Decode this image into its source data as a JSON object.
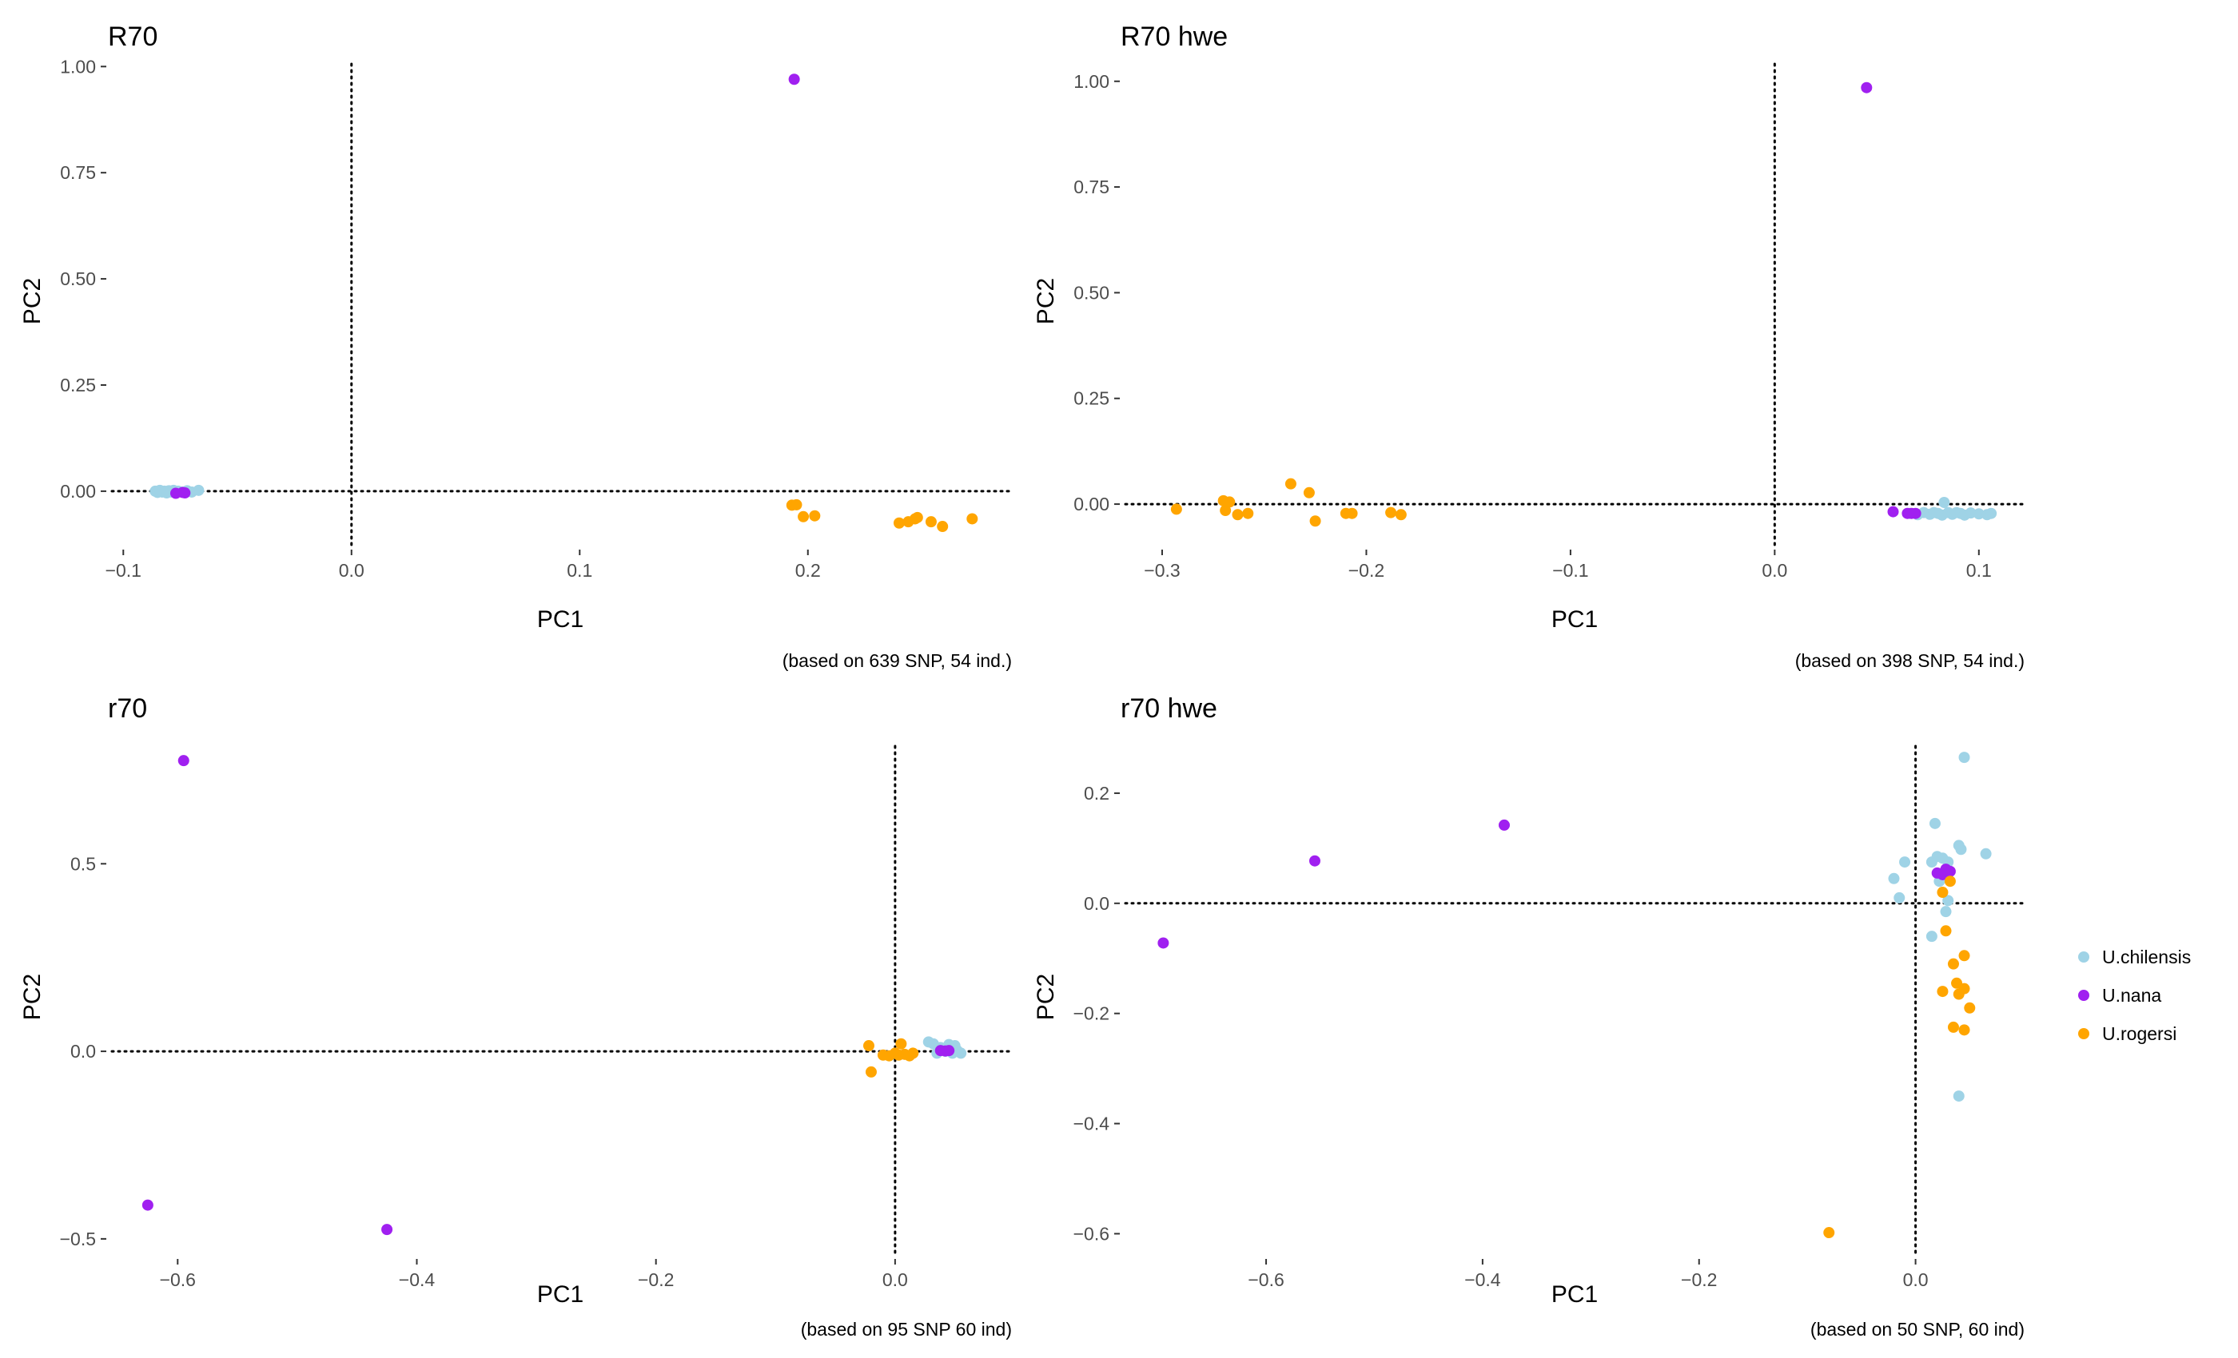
{
  "colors": {
    "U.chilensis": "#9fd3e6",
    "U.nana": "#a020f0",
    "U.rogersi": "#ffa500"
  },
  "legend": {
    "items": [
      "U.chilensis",
      "U.nana",
      "U.rogersi"
    ],
    "position": "right"
  },
  "chart_data": [
    {
      "type": "scatter",
      "title": "R70",
      "xlabel": "PC1",
      "ylabel": "PC2",
      "xlim": [
        -0.105,
        0.288
      ],
      "ylim": [
        -0.13,
        1.025
      ],
      "xticks": [
        -0.1,
        0.0,
        0.1,
        0.2
      ],
      "xtick_labels": [
        "−0.1",
        "0.0",
        "0.1",
        "0.2"
      ],
      "yticks": [
        0.0,
        0.25,
        0.5,
        0.75,
        1.0
      ],
      "ytick_labels": [
        "0.00",
        "0.25",
        "0.50",
        "0.75",
        "1.00"
      ],
      "refline_x": 0,
      "refline_y": 0,
      "caption": "(based on 639 SNP, 54 ind.)",
      "grid": false,
      "series": [
        {
          "name": "U.chilensis",
          "points": [
            [
              -0.086,
              0.0
            ],
            [
              -0.085,
              -0.003
            ],
            [
              -0.084,
              0.002
            ],
            [
              -0.083,
              -0.002
            ],
            [
              -0.082,
              0.0
            ],
            [
              -0.081,
              -0.004
            ],
            [
              -0.08,
              0.001
            ],
            [
              -0.079,
              -0.002
            ],
            [
              -0.078,
              0.002
            ],
            [
              -0.077,
              -0.003
            ],
            [
              -0.076,
              0.0
            ],
            [
              -0.074,
              -0.002
            ],
            [
              -0.072,
              0.001
            ],
            [
              -0.07,
              -0.002
            ],
            [
              -0.067,
              0.002
            ]
          ]
        },
        {
          "name": "U.nana",
          "points": [
            [
              0.194,
              0.97
            ],
            [
              -0.077,
              -0.005
            ],
            [
              -0.074,
              -0.003
            ],
            [
              -0.073,
              -0.004
            ]
          ]
        },
        {
          "name": "U.rogersi",
          "points": [
            [
              0.193,
              -0.033
            ],
            [
              0.195,
              -0.032
            ],
            [
              0.198,
              -0.06
            ],
            [
              0.203,
              -0.058
            ],
            [
              0.24,
              -0.075
            ],
            [
              0.244,
              -0.072
            ],
            [
              0.247,
              -0.065
            ],
            [
              0.248,
              -0.062
            ],
            [
              0.254,
              -0.072
            ],
            [
              0.259,
              -0.083
            ],
            [
              0.272,
              -0.065
            ]
          ]
        }
      ]
    },
    {
      "type": "scatter",
      "title": "R70 hwe",
      "xlabel": "PC1",
      "ylabel": "PC2",
      "xlim": [
        -0.318,
        0.122
      ],
      "ylim": [
        -0.1,
        1.06
      ],
      "xticks": [
        -0.3,
        -0.2,
        -0.1,
        0.0,
        0.1
      ],
      "xtick_labels": [
        "−0.3",
        "−0.2",
        "−0.1",
        "0.0",
        "0.1"
      ],
      "yticks": [
        0.0,
        0.25,
        0.5,
        0.75,
        1.0
      ],
      "ytick_labels": [
        "0.00",
        "0.25",
        "0.50",
        "0.75",
        "1.00"
      ],
      "refline_x": 0,
      "refline_y": 0,
      "caption": "(based on 398 SNP, 54 ind.)",
      "grid": false,
      "series": [
        {
          "name": "U.chilensis",
          "points": [
            [
              0.066,
              -0.022
            ],
            [
              0.07,
              -0.025
            ],
            [
              0.073,
              -0.02
            ],
            [
              0.076,
              -0.024
            ],
            [
              0.078,
              -0.02
            ],
            [
              0.08,
              -0.022
            ],
            [
              0.082,
              -0.026
            ],
            [
              0.083,
              0.004
            ],
            [
              0.085,
              -0.02
            ],
            [
              0.087,
              -0.024
            ],
            [
              0.089,
              -0.02
            ],
            [
              0.091,
              -0.022
            ],
            [
              0.093,
              -0.026
            ],
            [
              0.096,
              -0.021
            ],
            [
              0.1,
              -0.023
            ],
            [
              0.104,
              -0.025
            ],
            [
              0.106,
              -0.022
            ]
          ]
        },
        {
          "name": "U.nana",
          "points": [
            [
              0.045,
              0.985
            ],
            [
              0.058,
              -0.018
            ],
            [
              0.065,
              -0.022
            ],
            [
              0.067,
              -0.022
            ],
            [
              0.069,
              -0.022
            ]
          ]
        },
        {
          "name": "U.rogersi",
          "points": [
            [
              -0.293,
              -0.012
            ],
            [
              -0.27,
              0.008
            ],
            [
              -0.269,
              -0.015
            ],
            [
              -0.267,
              0.005
            ],
            [
              -0.263,
              -0.025
            ],
            [
              -0.258,
              -0.022
            ],
            [
              -0.237,
              0.048
            ],
            [
              -0.228,
              0.027
            ],
            [
              -0.225,
              -0.04
            ],
            [
              -0.21,
              -0.022
            ],
            [
              -0.207,
              -0.022
            ],
            [
              -0.188,
              -0.02
            ],
            [
              -0.183,
              -0.025
            ]
          ]
        }
      ]
    },
    {
      "type": "scatter",
      "title": "r70",
      "xlabel": "PC1",
      "ylabel": "PC2",
      "xlim": [
        -0.655,
        0.095
      ],
      "ylim": [
        -0.545,
        0.835
      ],
      "xticks": [
        -0.6,
        -0.4,
        -0.2,
        0.0
      ],
      "xtick_labels": [
        "−0.6",
        "−0.4",
        "−0.2",
        "0.0"
      ],
      "yticks": [
        -0.5,
        0.0,
        0.5
      ],
      "ytick_labels": [
        "−0.5",
        "0.0",
        "0.5"
      ],
      "refline_x": 0,
      "refline_y": 0,
      "caption": "(based on 95 SNP 60 ind)",
      "grid": false,
      "series": [
        {
          "name": "U.chilensis",
          "points": [
            [
              0.028,
              0.025
            ],
            [
              0.032,
              0.02
            ],
            [
              0.035,
              -0.005
            ],
            [
              0.038,
              0.01
            ],
            [
              0.042,
              0.0
            ],
            [
              0.045,
              0.018
            ],
            [
              0.048,
              -0.005
            ],
            [
              0.05,
              0.015
            ],
            [
              0.052,
              0.002
            ],
            [
              0.055,
              -0.005
            ]
          ]
        },
        {
          "name": "U.nana",
          "points": [
            [
              -0.595,
              0.775
            ],
            [
              -0.625,
              -0.41
            ],
            [
              -0.425,
              -0.475
            ],
            [
              0.038,
              0.002
            ],
            [
              0.042,
              0.001
            ],
            [
              0.045,
              0.002
            ]
          ]
        },
        {
          "name": "U.rogersi",
          "points": [
            [
              -0.022,
              0.015
            ],
            [
              -0.02,
              -0.055
            ],
            [
              -0.01,
              -0.01
            ],
            [
              -0.005,
              -0.012
            ],
            [
              0.0,
              -0.005
            ],
            [
              0.003,
              -0.01
            ],
            [
              0.005,
              0.02
            ],
            [
              0.008,
              -0.008
            ],
            [
              0.012,
              -0.012
            ],
            [
              0.015,
              -0.005
            ]
          ]
        }
      ]
    },
    {
      "type": "scatter",
      "title": "r70 hwe",
      "xlabel": "PC1",
      "ylabel": "PC2",
      "xlim": [
        -0.73,
        0.1
      ],
      "ylim": [
        -0.64,
        0.3
      ],
      "xticks": [
        -0.6,
        -0.4,
        -0.2,
        0.0
      ],
      "xtick_labels": [
        "−0.6",
        "−0.4",
        "−0.2",
        "0.0"
      ],
      "yticks": [
        -0.6,
        -0.4,
        -0.2,
        0.0,
        0.2
      ],
      "ytick_labels": [
        "−0.6",
        "−0.4",
        "−0.2",
        "0.0",
        "0.2"
      ],
      "refline_x": 0,
      "refline_y": 0,
      "caption": "(based on 50 SNP, 60 ind)",
      "grid": false,
      "series": [
        {
          "name": "U.chilensis",
          "points": [
            [
              0.045,
              0.265
            ],
            [
              0.018,
              0.145
            ],
            [
              0.065,
              0.09
            ],
            [
              0.04,
              0.105
            ],
            [
              0.042,
              0.098
            ],
            [
              0.015,
              0.075
            ],
            [
              0.02,
              0.085
            ],
            [
              0.025,
              0.082
            ],
            [
              0.03,
              0.075
            ],
            [
              -0.01,
              0.075
            ],
            [
              -0.02,
              0.045
            ],
            [
              0.022,
              0.04
            ],
            [
              -0.015,
              0.01
            ],
            [
              0.03,
              0.005
            ],
            [
              0.028,
              -0.015
            ],
            [
              0.015,
              -0.06
            ],
            [
              0.04,
              -0.35
            ]
          ]
        },
        {
          "name": "U.nana",
          "points": [
            [
              -0.38,
              0.142
            ],
            [
              -0.555,
              0.077
            ],
            [
              -0.695,
              -0.072
            ],
            [
              0.02,
              0.055
            ],
            [
              0.025,
              0.052
            ],
            [
              0.028,
              0.062
            ],
            [
              0.032,
              0.058
            ]
          ]
        },
        {
          "name": "U.rogersi",
          "points": [
            [
              0.025,
              0.02
            ],
            [
              0.032,
              0.04
            ],
            [
              0.028,
              -0.05
            ],
            [
              0.045,
              -0.095
            ],
            [
              0.035,
              -0.11
            ],
            [
              0.038,
              -0.145
            ],
            [
              0.045,
              -0.155
            ],
            [
              0.025,
              -0.16
            ],
            [
              0.04,
              -0.165
            ],
            [
              0.05,
              -0.19
            ],
            [
              0.035,
              -0.225
            ],
            [
              0.045,
              -0.23
            ],
            [
              -0.08,
              -0.598
            ]
          ]
        }
      ]
    }
  ]
}
